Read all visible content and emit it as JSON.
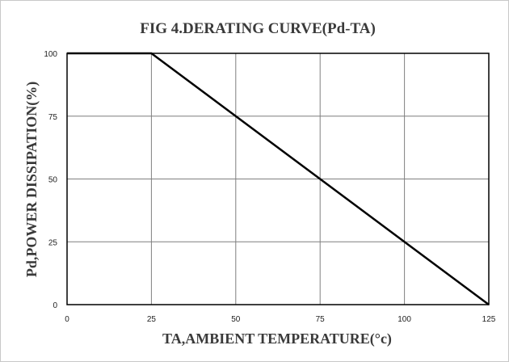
{
  "chart_data": {
    "type": "line",
    "title": "FIG 4.DERATING CURVE(Pd-TA)",
    "xlabel": "TA,AMBIENT TEMPERATURE(°c)",
    "ylabel": "Pd,POWER DISSIPATION(%)",
    "xlim": [
      0,
      125
    ],
    "ylim": [
      0,
      100
    ],
    "xticks": [
      "0",
      "25",
      "50",
      "75",
      "100",
      "125"
    ],
    "yticks": [
      "0",
      "25",
      "50",
      "75",
      "100"
    ],
    "grid": true,
    "series": [
      {
        "x": [
          0,
          25,
          125
        ],
        "y": [
          100,
          100,
          0
        ]
      }
    ],
    "colors": {
      "line": "#000000",
      "grid": "#7f7f7f",
      "border": "#000000"
    }
  }
}
